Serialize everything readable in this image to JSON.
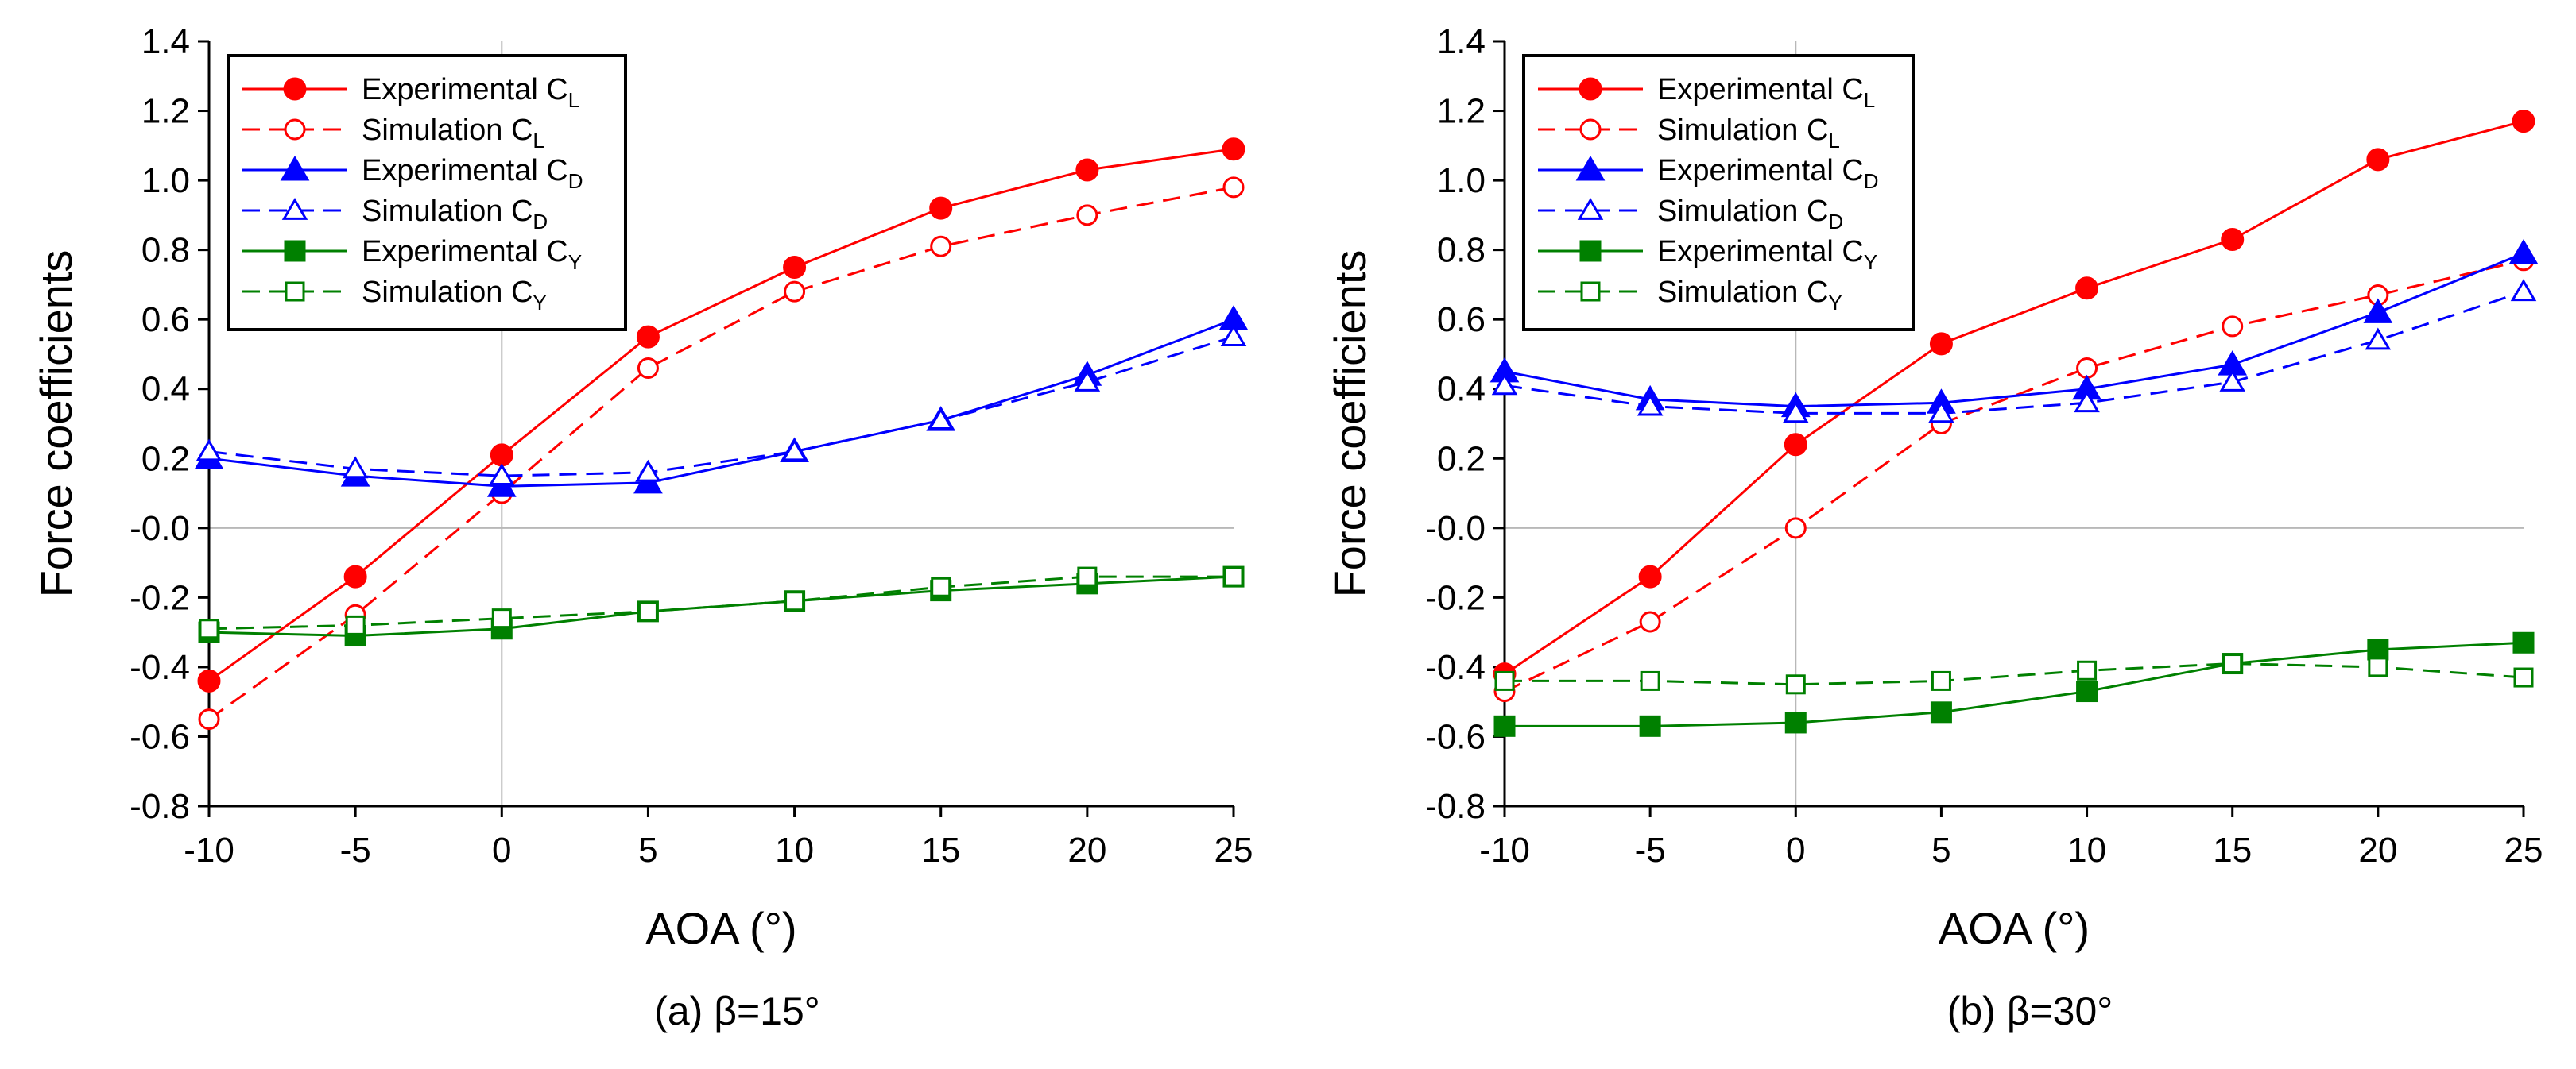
{
  "chart_data": [
    {
      "type": "line",
      "caption": "(a) β=15°",
      "xlabel": "AOA (°)",
      "ylabel": "Force coefficients",
      "xlim": [
        -10,
        25
      ],
      "ylim": [
        -0.8,
        1.4
      ],
      "xticks": [
        "-10",
        "-5",
        "0",
        "5",
        "10",
        "15",
        "20",
        "25"
      ],
      "yticks": [
        "-0.8",
        "-0.6",
        "-0.4",
        "-0.2",
        "-0.0",
        "0.2",
        "0.4",
        "0.6",
        "0.8",
        "1.0",
        "1.2",
        "1.4"
      ],
      "x": [
        -10,
        -5,
        0,
        5,
        10,
        15,
        20,
        25
      ],
      "legend_position": "top-left",
      "series": [
        {
          "name": "Experimental C",
          "sub": "L",
          "color": "#ff0000",
          "dash": "solid",
          "marker": "circle",
          "filled": true,
          "values": [
            -0.44,
            -0.14,
            0.21,
            0.55,
            0.75,
            0.92,
            1.03,
            1.09
          ]
        },
        {
          "name": "Simulation C",
          "sub": "L",
          "color": "#ff0000",
          "dash": "dashed",
          "marker": "circle",
          "filled": false,
          "values": [
            -0.55,
            -0.25,
            0.1,
            0.46,
            0.68,
            0.81,
            0.9,
            0.98
          ]
        },
        {
          "name": "Experimental C",
          "sub": "D",
          "color": "#0000ff",
          "dash": "solid",
          "marker": "triangle",
          "filled": true,
          "values": [
            0.2,
            0.15,
            0.12,
            0.13,
            0.22,
            0.31,
            0.44,
            0.6
          ]
        },
        {
          "name": "Simulation C",
          "sub": "D",
          "color": "#0000ff",
          "dash": "dashed",
          "marker": "triangle",
          "filled": false,
          "values": [
            0.22,
            0.17,
            0.15,
            0.16,
            0.22,
            0.31,
            0.42,
            0.55
          ]
        },
        {
          "name": "Experimental C",
          "sub": "Y",
          "color": "#008000",
          "dash": "solid",
          "marker": "square",
          "filled": true,
          "values": [
            -0.3,
            -0.31,
            -0.29,
            -0.24,
            -0.21,
            -0.18,
            -0.16,
            -0.14
          ]
        },
        {
          "name": "Simulation C",
          "sub": "Y",
          "color": "#008000",
          "dash": "dashed",
          "marker": "square",
          "filled": false,
          "values": [
            -0.29,
            -0.28,
            -0.26,
            -0.24,
            -0.21,
            -0.17,
            -0.14,
            -0.14
          ]
        }
      ]
    },
    {
      "type": "line",
      "caption": "(b) β=30°",
      "xlabel": "AOA (°)",
      "ylabel": "Force coefficients",
      "xlim": [
        -10,
        25
      ],
      "ylim": [
        -0.8,
        1.4
      ],
      "xticks": [
        "-10",
        "-5",
        "0",
        "5",
        "10",
        "15",
        "20",
        "25"
      ],
      "yticks": [
        "-0.8",
        "-0.6",
        "-0.4",
        "-0.2",
        "-0.0",
        "0.2",
        "0.4",
        "0.6",
        "0.8",
        "1.0",
        "1.2",
        "1.4"
      ],
      "x": [
        -10,
        -5,
        0,
        5,
        10,
        15,
        20,
        25
      ],
      "legend_position": "top-left",
      "series": [
        {
          "name": "Experimental C",
          "sub": "L",
          "color": "#ff0000",
          "dash": "solid",
          "marker": "circle",
          "filled": true,
          "values": [
            -0.42,
            -0.14,
            0.24,
            0.53,
            0.69,
            0.83,
            1.06,
            1.17
          ]
        },
        {
          "name": "Simulation C",
          "sub": "L",
          "color": "#ff0000",
          "dash": "dashed",
          "marker": "circle",
          "filled": false,
          "values": [
            -0.47,
            -0.27,
            0.0,
            0.3,
            0.46,
            0.58,
            0.67,
            0.77
          ]
        },
        {
          "name": "Experimental C",
          "sub": "D",
          "color": "#0000ff",
          "dash": "solid",
          "marker": "triangle",
          "filled": true,
          "values": [
            0.45,
            0.37,
            0.35,
            0.36,
            0.4,
            0.47,
            0.62,
            0.79
          ]
        },
        {
          "name": "Simulation C",
          "sub": "D",
          "color": "#0000ff",
          "dash": "dashed",
          "marker": "triangle",
          "filled": false,
          "values": [
            0.41,
            0.35,
            0.33,
            0.33,
            0.36,
            0.42,
            0.54,
            0.68
          ]
        },
        {
          "name": "Experimental C",
          "sub": "Y",
          "color": "#008000",
          "dash": "solid",
          "marker": "square",
          "filled": true,
          "values": [
            -0.57,
            -0.57,
            -0.56,
            -0.53,
            -0.47,
            -0.39,
            -0.35,
            -0.33
          ]
        },
        {
          "name": "Simulation C",
          "sub": "Y",
          "color": "#008000",
          "dash": "dashed",
          "marker": "square",
          "filled": false,
          "values": [
            -0.44,
            -0.44,
            -0.45,
            -0.44,
            -0.41,
            -0.39,
            -0.4,
            -0.43
          ]
        }
      ]
    }
  ]
}
